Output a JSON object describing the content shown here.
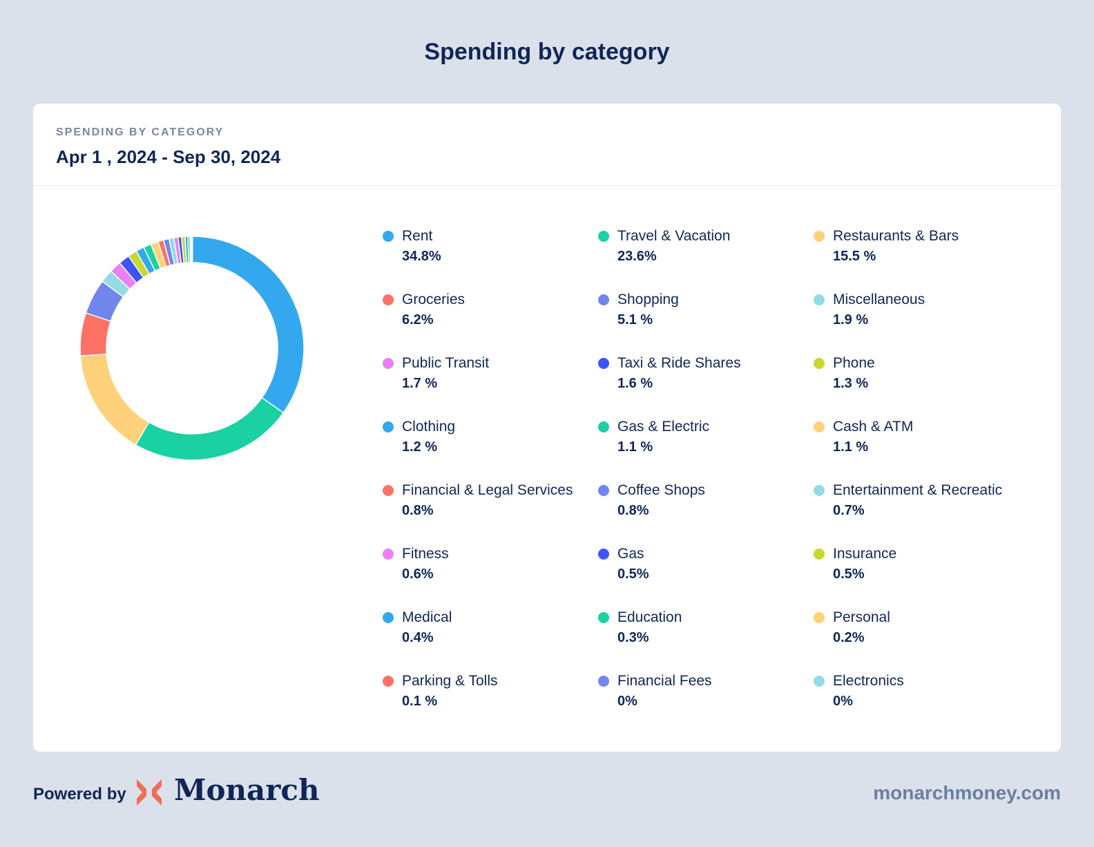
{
  "page_title": "Spending by category",
  "card": {
    "kicker": "SPENDING BY CATEGORY",
    "date_range": "Apr 1 , 2024 - Sep 30, 2024"
  },
  "footer": {
    "powered_by": "Powered by",
    "brand": "Monarch",
    "url": "monarchmoney.com",
    "logo_icon": "monarch-logo-icon",
    "logo_color": "#f26d55"
  },
  "chart_data": {
    "type": "pie",
    "title": "",
    "categories": [
      "Rent",
      "Travel & Vacation",
      "Restaurants & Bars",
      "Groceries",
      "Shopping",
      "Miscellaneous",
      "Public Transit",
      "Taxi & Ride Shares",
      "Phone",
      "Clothing",
      "Gas & Electric",
      "Cash & ATM",
      "Financial & Legal Services",
      "Coffee Shops",
      "Entertainment & Recreatic",
      "Fitness",
      "Gas",
      "Insurance",
      "Medical",
      "Education",
      "Personal",
      "Parking & Tolls",
      "Financial Fees",
      "Electronics"
    ],
    "values": [
      34.8,
      23.6,
      15.5,
      6.2,
      5.1,
      1.9,
      1.7,
      1.6,
      1.3,
      1.2,
      1.1,
      1.1,
      0.8,
      0.8,
      0.7,
      0.6,
      0.5,
      0.5,
      0.4,
      0.3,
      0.2,
      0.1,
      0,
      0
    ],
    "value_labels": [
      "34.8%",
      "23.6%",
      "15.5 %",
      "6.2%",
      "5.1 %",
      "1.9 %",
      "1.7 %",
      "1.6 %",
      "1.3 %",
      "1.2 %",
      "1.1  %",
      "1.1  %",
      "0.8%",
      "0.8%",
      "0.7%",
      "0.6%",
      "0.5%",
      "0.5%",
      "0.4%",
      "0.3%",
      "0.2%",
      "0.1 %",
      "0%",
      "0%"
    ],
    "colors": [
      "#33a8ef",
      "#1ad1a3",
      "#fed17a",
      "#fd7265",
      "#7186ec",
      "#92dbe7",
      "#ea80f4",
      "#3c55f9",
      "#c7d82f",
      "#33a8ef",
      "#1ad1a3",
      "#fed17a",
      "#fd7265",
      "#7186ec",
      "#92dbe7",
      "#ea80f4",
      "#3c55f9",
      "#c7d82f",
      "#33a8ef",
      "#1ad1a3",
      "#fed17a",
      "#fd7265",
      "#7186ec",
      "#92dbe7"
    ],
    "legend_position": "right",
    "donut": true
  }
}
